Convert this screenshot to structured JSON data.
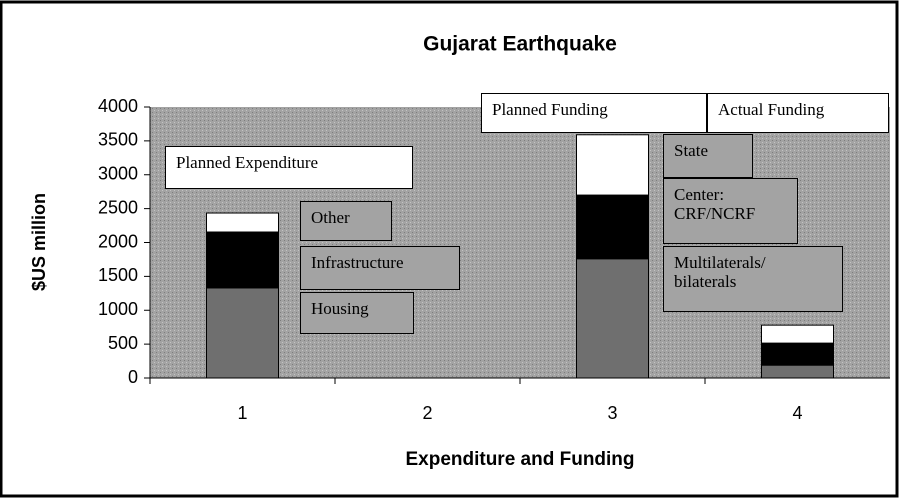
{
  "chart_data": {
    "type": "stacked_bar",
    "title": "Gujarat Earthquake",
    "x_label": "Expenditure and Funding",
    "y_label": "$US million",
    "categories": [
      "1",
      "2",
      "3",
      "4"
    ],
    "series": [
      {
        "color": "#6f6f6f",
        "values": [
          1330,
          null,
          1760,
          190
        ]
      },
      {
        "color": "#000000",
        "values": [
          825,
          null,
          940,
          325
        ]
      },
      {
        "color": "#ffffff",
        "values": [
          280,
          null,
          890,
          265
        ]
      }
    ],
    "ylim": [
      0,
      4000
    ],
    "yticks": [
      0,
      500,
      1000,
      1500,
      2000,
      2500,
      3000,
      3500,
      4000
    ],
    "annotations": [
      "Planned Expenditure",
      "Other",
      "Infrastructure",
      "Housing",
      "Planned Funding",
      "Actual Funding",
      "State",
      "Center:\nCRF/NCRF",
      "Multilaterals/\nbilaterals"
    ]
  }
}
